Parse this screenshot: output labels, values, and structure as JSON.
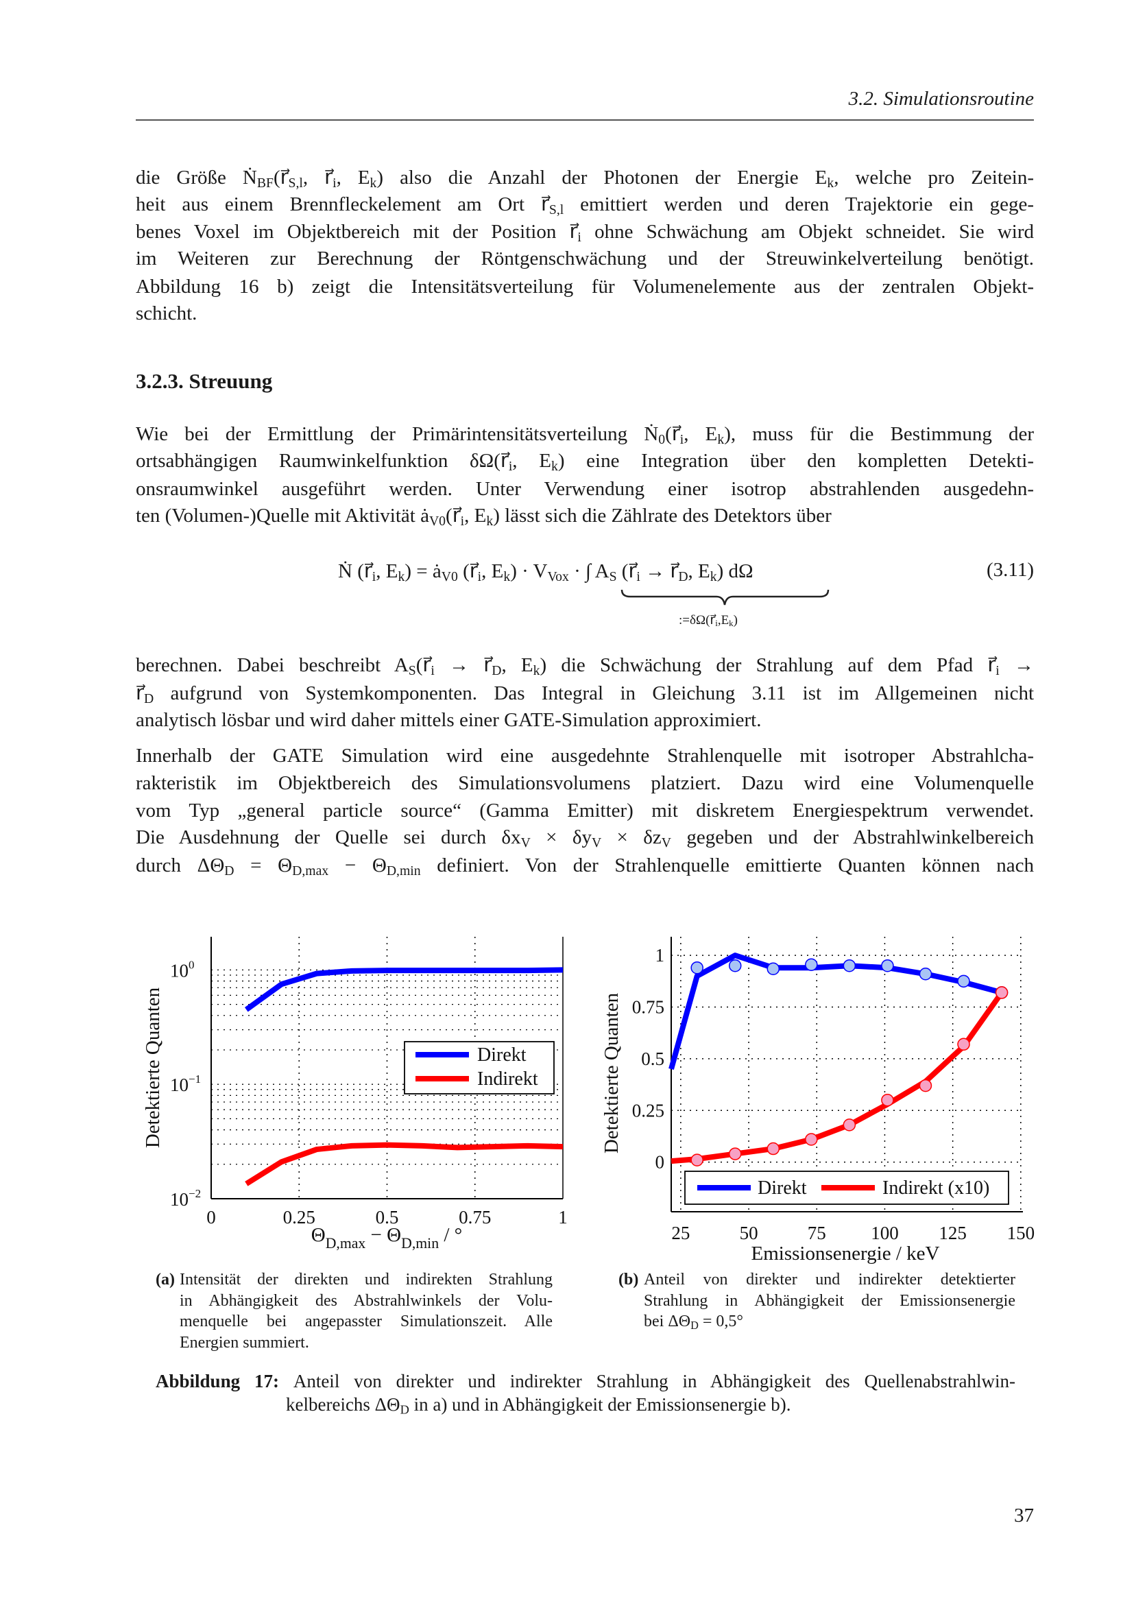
{
  "header": {
    "running_title": "3.2. Simulationsroutine"
  },
  "paragraphs": [
    {
      "lines": [
        [
          "die Größe Ṅ",
          "_BF",
          "(r⃗",
          "_S,l",
          ", r⃗",
          "_i",
          ", E",
          "_k",
          ") also die Anzahl der Photonen der Energie E",
          "_k",
          ", welche pro Zeitein-"
        ],
        [
          "heit aus einem Brennfleckelement am Ort r⃗",
          "_S,l",
          " emittiert werden und deren Trajektorie ein gege-"
        ],
        [
          "benes Voxel im Objektbereich mit der Position r⃗",
          "_i",
          " ohne Schwächung am Objekt schneidet. Sie wird"
        ],
        [
          "im Weiteren zur Berechnung der Röntgenschwächung und der Streuwinkelverteilung benötigt."
        ],
        [
          "Abbildung 16 b) zeigt die Intensitätsverteilung für Volumenelemente aus der zentralen Objekt-"
        ],
        [
          "schicht."
        ]
      ]
    },
    {
      "lines": [
        [
          "Wie bei der Ermittlung der Primärintensitätsverteilung Ṅ",
          "_0",
          "(r⃗",
          "_i",
          ", E",
          "_k",
          "), muss für die Bestimmung der"
        ],
        [
          "ortsabhängigen Raumwinkelfunktion δΩ(r⃗",
          "_i",
          ", E",
          "_k",
          ") eine Integration über den kompletten Detekti-"
        ],
        [
          "onsraumwinkel ausgeführt werden. Unter Verwendung einer isotrop abstrahlenden ausgedehn-"
        ],
        [
          "ten (Volumen-)Quelle mit Aktivität ȧ",
          "_V0",
          "(r⃗",
          "_i",
          ", E",
          "_k",
          ") lässt sich die Zählrate des Detektors über"
        ]
      ]
    },
    {
      "lines": [
        [
          "berechnen. Dabei beschreibt A",
          "_S",
          "(r⃗",
          "_i",
          " → r⃗",
          "_D",
          ", E",
          "_k",
          ") die Schwächung der Strahlung auf dem Pfad r⃗",
          "_i",
          " →"
        ],
        [
          "r⃗",
          "_D",
          " aufgrund von Systemkomponenten. Das Integral in Gleichung 3.11 ist im Allgemeinen nicht"
        ],
        [
          "analytisch lösbar und wird daher mittels einer GATE-Simulation approximiert."
        ]
      ]
    },
    {
      "lines": [
        [
          "Innerhalb der GATE Simulation wird eine ausgedehnte Strahlenquelle mit isotroper Abstrahlcha-"
        ],
        [
          "rakteristik im Objektbereich des Simulationsvolumens platziert. Dazu wird eine Volumenquelle"
        ],
        [
          "vom Typ „general particle source“ (Gamma Emitter) mit diskretem Energiespektrum verwendet."
        ],
        [
          "Die Ausdehnung der Quelle sei durch δx",
          "_V",
          " × δy",
          "_V",
          " × δz",
          "_V",
          " gegeben und der Abstrahlwinkelbereich"
        ],
        [
          "durch ΔΘ",
          "_D",
          " = Θ",
          "_D,max",
          " − Θ",
          "_D,min",
          " definiert. Von der Strahlenquelle emittierte Quanten können nach"
        ]
      ]
    }
  ],
  "section_heading": "3.2.3.  Streuung",
  "equation": {
    "parts": [
      "Ṅ (r⃗",
      "_i",
      ", E",
      "_k",
      ") = ȧ",
      "_V0",
      " (r⃗",
      "_i",
      ", E",
      "_k",
      ") · V",
      "_Vox",
      " · ∫ A",
      "_S",
      " (r⃗",
      "_i",
      " → r⃗",
      "_D",
      ", E",
      "_k",
      ") dΩ"
    ],
    "underbrace_label": [
      ":=δΩ(r⃗",
      "_i",
      ",E",
      "_k",
      ")"
    ],
    "number": "(3.11)"
  },
  "subcaption_a": {
    "label": "(a)",
    "lines": [
      [
        "Intensität der direkten und indirekten Strahlung"
      ],
      [
        "in Abhängigkeit des Abstrahlwinkels der Volu-"
      ],
      [
        "menquelle bei angepasster Simulationszeit. Alle"
      ],
      [
        "Energien summiert."
      ]
    ]
  },
  "subcaption_b": {
    "label": "(b)",
    "lines": [
      [
        "Anteil von direkter und indirekter detektierter"
      ],
      [
        "Strahlung in Abhängigkeit der Emissionsenergie"
      ],
      [
        "bei ΔΘ",
        "_D",
        " = 0,5°"
      ]
    ]
  },
  "figure_caption": {
    "label": "Abbildung 17:",
    "lines": [
      [
        "Anteil von direkter und indirekter Strahlung in Abhängigkeit des Quellenabstrahlwin-"
      ],
      [
        "kelbereichs ΔΘ",
        "_D",
        " in a) und in Abhängigkeit der Emissionsenergie b)."
      ]
    ]
  },
  "page_number": "37",
  "colors": {
    "direkt": "#0000ff",
    "indirekt": "#ff0000",
    "direkt_marker": "#a9c4f5",
    "indirekt_marker": "#f7a1c4"
  },
  "chart_data": [
    {
      "type": "line",
      "id": "a",
      "xlabel": [
        "Θ",
        "_D,max",
        " − Θ",
        "_D,min",
        " / °"
      ],
      "ylabel": "Detektierte Quanten",
      "xscale": "linear",
      "yscale": "log",
      "xlim": [
        0,
        1
      ],
      "ylim": [
        0.01,
        1.95
      ],
      "xticks": [
        0,
        0.25,
        0.5,
        0.75,
        1
      ],
      "xtick_labels": [
        "0",
        "0.25",
        "0.5",
        "0.75",
        "1"
      ],
      "yticks": [
        1,
        0.1,
        0.01
      ],
      "ytick_labels": [
        {
          "base": "10",
          "exp": "0"
        },
        {
          "base": "10",
          "exp": "−1"
        },
        {
          "base": "10",
          "exp": "−2"
        }
      ],
      "grid": true,
      "legend_position": "center-right",
      "x": [
        0.1,
        0.2,
        0.3,
        0.4,
        0.5,
        0.6,
        0.7,
        0.8,
        0.9,
        1.0
      ],
      "series": [
        {
          "name": "Direkt",
          "values": [
            0.45,
            0.75,
            0.93,
            0.98,
            0.99,
            0.99,
            0.99,
            0.99,
            0.99,
            1.0
          ]
        },
        {
          "name": "Indirekt",
          "values": [
            0.0135,
            0.021,
            0.027,
            0.029,
            0.0295,
            0.029,
            0.028,
            0.0285,
            0.029,
            0.0285
          ]
        }
      ]
    },
    {
      "type": "line",
      "id": "b",
      "xlabel": [
        "Emissionsenergie / keV"
      ],
      "ylabel": "Detektierte Quanten",
      "xscale": "linear",
      "yscale": "linear",
      "xlim": [
        21.5,
        150.8
      ],
      "ylim": [
        -0.24,
        1.09
      ],
      "xticks": [
        25,
        50,
        75,
        100,
        125,
        150
      ],
      "xtick_labels": [
        "25",
        "50",
        "75",
        "100",
        "125",
        "150"
      ],
      "yticks": [
        0,
        0.25,
        0.5,
        0.75,
        1
      ],
      "ytick_labels": [
        "0",
        "0.25",
        "0.5",
        "0.75",
        "1"
      ],
      "grid": true,
      "legend_position": "bottom",
      "x": [
        21.5,
        31,
        45,
        59,
        73,
        87,
        101,
        115,
        129,
        143
      ],
      "marker_x": [
        31,
        45,
        59,
        73,
        87,
        101,
        115,
        129,
        143
      ],
      "series": [
        {
          "name": "Direkt",
          "values": [
            0.45,
            0.9,
            1.0,
            0.94,
            0.94,
            0.95,
            0.94,
            0.91,
            0.87,
            0.82
          ],
          "markers": [
            0.94,
            0.95,
            0.935,
            0.955,
            0.95,
            0.95,
            0.91,
            0.875,
            0.82
          ]
        },
        {
          "name": "Indirekt (x10)",
          "values": [
            0.005,
            0.015,
            0.04,
            0.065,
            0.11,
            0.18,
            0.28,
            0.39,
            0.56,
            0.82
          ],
          "markers": [
            0.01,
            0.04,
            0.065,
            0.11,
            0.18,
            0.3,
            0.37,
            0.57,
            0.82
          ]
        }
      ]
    }
  ]
}
